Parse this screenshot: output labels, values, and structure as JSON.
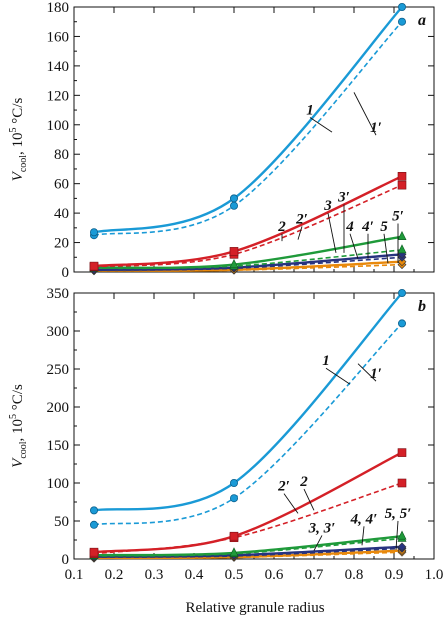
{
  "xlabel": "Relative granule radius",
  "chart_data": [
    {
      "type": "line",
      "panel": "a",
      "ylabel": "V",
      "ylabel_sub": "cool",
      "ylabel_rest": ", 10",
      "ylabel_sup": "5",
      "ylabel_unit": " °C/s",
      "xlim": [
        0.1,
        1.0
      ],
      "ylim": [
        0,
        180
      ],
      "xticks": [
        "0.1",
        "0.2",
        "0.3",
        "0.4",
        "0.5",
        "0.6",
        "0.7",
        "0.8",
        "0.9",
        "1.0"
      ],
      "yticks": [
        "0",
        "20",
        "40",
        "60",
        "80",
        "100",
        "120",
        "140",
        "160",
        "180"
      ],
      "x": [
        0.15,
        0.5,
        0.92
      ],
      "series": [
        {
          "name": "1",
          "style": "solid",
          "color": "#1a9ad6",
          "marker": "circle",
          "values": [
            27,
            50,
            180
          ]
        },
        {
          "name": "1′",
          "style": "dashed",
          "color": "#1a9ad6",
          "marker": "circle",
          "values": [
            25,
            45,
            170
          ]
        },
        {
          "name": "2",
          "style": "solid",
          "color": "#d42027",
          "marker": "square",
          "values": [
            4,
            14,
            65
          ]
        },
        {
          "name": "2′",
          "style": "dashed",
          "color": "#d42027",
          "marker": "square",
          "values": [
            3.5,
            12,
            59
          ]
        },
        {
          "name": "3",
          "style": "solid",
          "color": "#1f9a3a",
          "marker": "triangle",
          "values": [
            3,
            5,
            24
          ]
        },
        {
          "name": "3′",
          "style": "dashed",
          "color": "#1f9a3a",
          "marker": "triangle",
          "values": [
            2.5,
            4,
            15
          ]
        },
        {
          "name": "4",
          "style": "solid",
          "color": "#27337f",
          "marker": "diamond",
          "values": [
            1.5,
            3,
            12
          ]
        },
        {
          "name": "4′",
          "style": "dashed",
          "color": "#27337f",
          "marker": "diamond",
          "values": [
            1.3,
            2.5,
            10
          ]
        },
        {
          "name": "5",
          "style": "solid",
          "color": "#e8890c",
          "marker": "diamond",
          "values": [
            1,
            1.5,
            7
          ]
        },
        {
          "name": "5′",
          "style": "dashed",
          "color": "#e8890c",
          "marker": "diamond",
          "values": [
            0.8,
            1.2,
            5
          ]
        }
      ],
      "annotations": [
        {
          "text": "1",
          "x": 0.69,
          "y": 107,
          "tx": 0.745,
          "ty": 95
        },
        {
          "text": "1′",
          "x": 0.855,
          "y": 95,
          "tx": 0.8,
          "ty": 122
        },
        {
          "text": "2",
          "x": 0.62,
          "y": 28,
          "tx": 0.62,
          "ty": 21
        },
        {
          "text": "2′",
          "x": 0.67,
          "y": 33,
          "tx": 0.66,
          "ty": 22
        },
        {
          "text": "3",
          "x": 0.735,
          "y": 42,
          "tx": 0.755,
          "ty": 13
        },
        {
          "text": "3′",
          "x": 0.775,
          "y": 48,
          "tx": 0.775,
          "ty": 13
        },
        {
          "text": "4",
          "x": 0.79,
          "y": 28,
          "tx": 0.81,
          "ty": 9
        },
        {
          "text": "4′",
          "x": 0.835,
          "y": 28,
          "tx": 0.835,
          "ty": 9
        },
        {
          "text": "5",
          "x": 0.875,
          "y": 28,
          "tx": 0.885,
          "ty": 6
        },
        {
          "text": "5′",
          "x": 0.91,
          "y": 35,
          "tx": 0.91,
          "ty": 6
        }
      ]
    },
    {
      "type": "line",
      "panel": "b",
      "ylabel": "V",
      "ylabel_sub": "cool",
      "ylabel_rest": ", 10",
      "ylabel_sup": "5",
      "ylabel_unit": " °C/s",
      "xlim": [
        0.1,
        1.0
      ],
      "ylim": [
        0,
        350
      ],
      "xticks": [
        "0.1",
        "0.2",
        "0.3",
        "0.4",
        "0.5",
        "0.6",
        "0.7",
        "0.8",
        "0.9",
        "1.0"
      ],
      "yticks": [
        "0",
        "50",
        "100",
        "150",
        "200",
        "250",
        "300",
        "350"
      ],
      "x": [
        0.15,
        0.5,
        0.92
      ],
      "series": [
        {
          "name": "1",
          "style": "solid",
          "color": "#1a9ad6",
          "marker": "circle",
          "values": [
            64,
            100,
            350
          ]
        },
        {
          "name": "1′",
          "style": "dashed",
          "color": "#1a9ad6",
          "marker": "circle",
          "values": [
            45,
            80,
            310
          ]
        },
        {
          "name": "2",
          "style": "solid",
          "color": "#d42027",
          "marker": "square",
          "values": [
            9,
            30,
            140
          ]
        },
        {
          "name": "2′",
          "style": "dashed",
          "color": "#d42027",
          "marker": "square",
          "values": [
            7,
            28,
            100
          ]
        },
        {
          "name": "3",
          "style": "solid",
          "color": "#1f9a3a",
          "marker": "triangle",
          "values": [
            5,
            8,
            30
          ]
        },
        {
          "name": "3′",
          "style": "dashed",
          "color": "#1f9a3a",
          "marker": "triangle",
          "values": [
            4,
            7,
            27
          ]
        },
        {
          "name": "4",
          "style": "solid",
          "color": "#27337f",
          "marker": "diamond",
          "values": [
            3,
            5,
            16
          ]
        },
        {
          "name": "4′",
          "style": "dashed",
          "color": "#27337f",
          "marker": "diamond",
          "values": [
            2.5,
            4,
            14
          ]
        },
        {
          "name": "5",
          "style": "solid",
          "color": "#e8890c",
          "marker": "diamond",
          "values": [
            1.5,
            2.5,
            11
          ]
        },
        {
          "name": "5′",
          "style": "dashed",
          "color": "#e8890c",
          "marker": "diamond",
          "values": [
            1,
            2,
            9
          ]
        }
      ],
      "annotations": [
        {
          "text": "1",
          "x": 0.73,
          "y": 255,
          "tx": 0.79,
          "ty": 230
        },
        {
          "text": "1′",
          "x": 0.855,
          "y": 238,
          "tx": 0.81,
          "ty": 257
        },
        {
          "text": "2′",
          "x": 0.625,
          "y": 90,
          "tx": 0.66,
          "ty": 60
        },
        {
          "text": "2",
          "x": 0.675,
          "y": 96,
          "tx": 0.7,
          "ty": 64
        },
        {
          "text": "3, 3′",
          "x": 0.72,
          "y": 35,
          "tx": 0.7,
          "ty": 11
        },
        {
          "text": "4, 4′",
          "x": 0.825,
          "y": 47,
          "tx": 0.82,
          "ty": 18
        },
        {
          "text": "5, 5′",
          "x": 0.91,
          "y": 54,
          "tx": 0.905,
          "ty": 12
        }
      ]
    }
  ]
}
